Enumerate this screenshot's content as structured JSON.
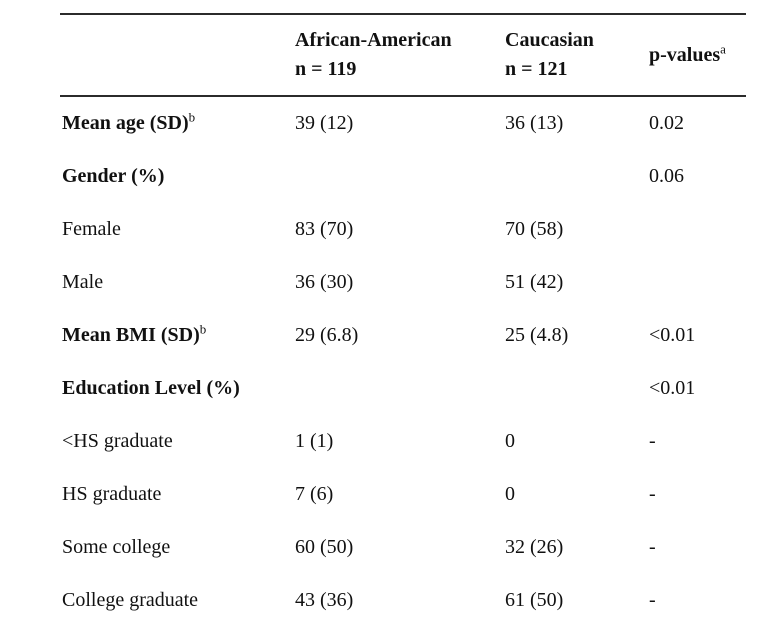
{
  "table": {
    "columns": [
      {
        "label": ""
      },
      {
        "label": "African-American",
        "sub": "n = 119"
      },
      {
        "label": "Caucasian",
        "sub": "n = 121"
      },
      {
        "label": "p-values",
        "sup": "a"
      }
    ],
    "rows": [
      {
        "label": "Mean age (SD)",
        "sup": "b",
        "aa": "39 (12)",
        "ca": "36 (13)",
        "p": "0.02"
      },
      {
        "label": "Gender (%)",
        "aa": "",
        "ca": "",
        "p": "0.06"
      },
      {
        "label": "Female",
        "aa": "83 (70)",
        "ca": "70 (58)",
        "p": ""
      },
      {
        "label": "Male",
        "aa": "36 (30)",
        "ca": "51 (42)",
        "p": ""
      },
      {
        "label": "Mean BMI (SD)",
        "sup": "b",
        "aa": "29 (6.8)",
        "ca": "25 (4.8)",
        "p": "<0.01"
      },
      {
        "label": "Education Level (%)",
        "aa": "",
        "ca": "",
        "p": "<0.01"
      },
      {
        "label": "<HS graduate",
        "aa": "1 (1)",
        "ca": "0",
        "p": "-"
      },
      {
        "label": "HS graduate",
        "aa": "7 (6)",
        "ca": "0",
        "p": "-"
      },
      {
        "label": "Some college",
        "aa": "60 (50)",
        "ca": "32 (26)",
        "p": "-"
      },
      {
        "label": "College graduate",
        "aa": "43 (36)",
        "ca": "61 (50)",
        "p": "-"
      }
    ]
  }
}
